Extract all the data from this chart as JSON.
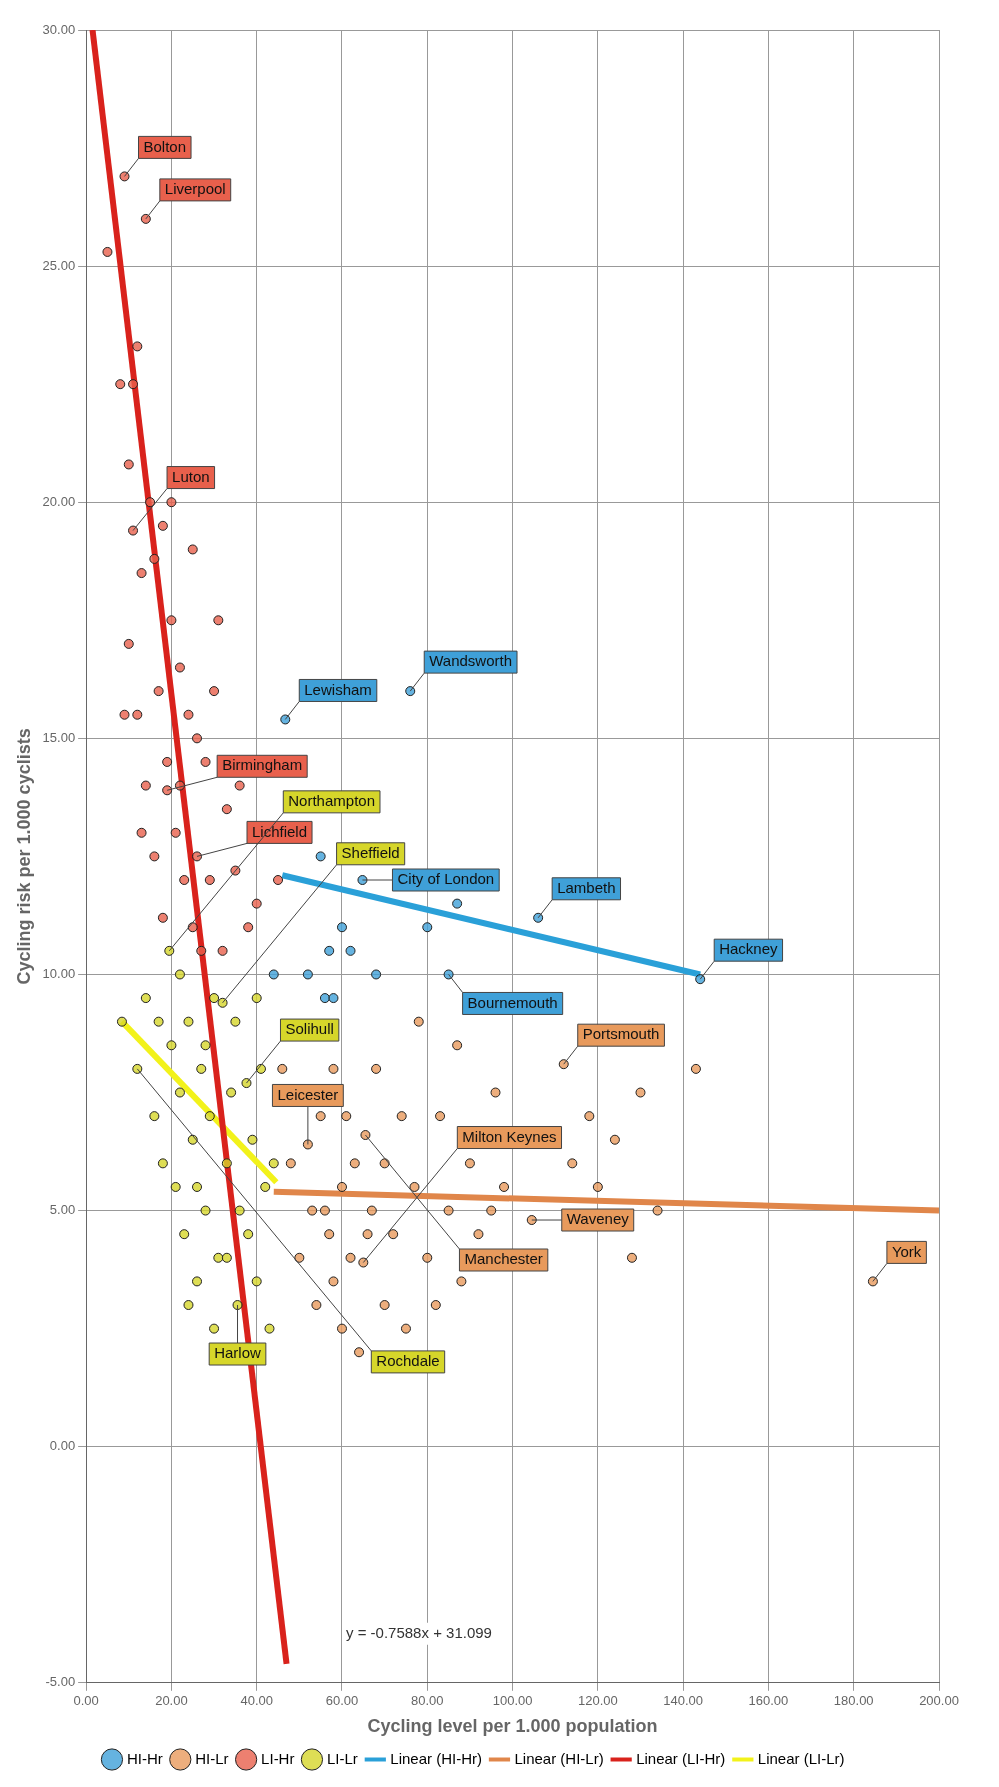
{
  "chart_data": {
    "type": "scatter",
    "xlabel": "Cycling level per 1.000 population",
    "ylabel": "Cycling risk per 1.000 cyclists",
    "xlim": [
      0,
      200
    ],
    "xticks": [
      {
        "value": 0,
        "label": "0.00"
      },
      {
        "value": 20,
        "label": "20.00"
      },
      {
        "value": 40,
        "label": "40.00"
      },
      {
        "value": 60,
        "label": "60.00"
      },
      {
        "value": 80,
        "label": "80.00"
      },
      {
        "value": 100,
        "label": "100.00"
      },
      {
        "value": 120,
        "label": "120.00"
      },
      {
        "value": 140,
        "label": "140.00"
      },
      {
        "value": 160,
        "label": "160.00"
      },
      {
        "value": 180,
        "label": "180.00"
      },
      {
        "value": 200,
        "label": "200.00"
      }
    ],
    "ylim": [
      -5,
      30
    ],
    "yticks": [
      {
        "value": -5,
        "label": "-5.00"
      },
      {
        "value": 0,
        "label": "0.00"
      },
      {
        "value": 5,
        "label": "5.00"
      },
      {
        "value": 10,
        "label": "10.00"
      },
      {
        "value": 15,
        "label": "15.00"
      },
      {
        "value": 20,
        "label": "20.00"
      },
      {
        "value": 25,
        "label": "25.00"
      },
      {
        "value": 30,
        "label": "30.00"
      }
    ],
    "grid": true,
    "legend": "bottom",
    "marker": "circle",
    "series": [
      {
        "name": "HI-Hr",
        "color": "#3fa0d8",
        "x": [
          44,
          46.7,
          52,
          55,
          56,
          57,
          58,
          60,
          62,
          64.8,
          68,
          76,
          80,
          85,
          87,
          106,
          144
        ],
        "values": [
          10,
          15.4,
          10,
          12.5,
          9.5,
          10.5,
          9.5,
          11,
          10.5,
          12,
          10,
          16,
          11,
          10,
          11.5,
          11.2,
          9.9
        ]
      },
      {
        "name": "HI-Lr",
        "color": "#e89a5c",
        "x": [
          46,
          48,
          50,
          52,
          54,
          55,
          56,
          58,
          58,
          60,
          60,
          62,
          63,
          65,
          65.5,
          67,
          68,
          70,
          70,
          72,
          74,
          75,
          77,
          78,
          80,
          82,
          83,
          85,
          87,
          88,
          90,
          92,
          95,
          96,
          98,
          104.5,
          112,
          114,
          118,
          120,
          124,
          128,
          130,
          134,
          143,
          184.5,
          53,
          57,
          61,
          64,
          66
        ],
        "values": [
          8,
          6,
          4,
          6.4,
          3,
          7,
          5,
          3.5,
          8,
          5.5,
          2.5,
          4,
          6,
          3.9,
          6.6,
          5,
          8,
          3,
          6,
          4.5,
          7,
          2.5,
          5.5,
          9,
          4,
          3,
          7,
          5,
          8.5,
          3.5,
          6,
          4.5,
          5,
          7.5,
          5.5,
          4.8,
          8.1,
          6,
          7,
          5.5,
          6.5,
          4,
          7.5,
          5,
          8,
          3.5,
          5,
          4.5,
          7,
          2,
          4.5
        ]
      },
      {
        "name": "LI-Hr",
        "color": "#e8604c",
        "x": [
          5,
          9,
          14,
          8,
          11,
          12,
          10,
          11,
          13,
          15,
          16,
          18,
          20,
          22,
          24,
          26,
          28,
          30,
          31,
          33,
          35,
          36,
          38,
          40,
          17,
          19,
          21,
          23,
          25,
          27,
          29,
          14,
          12,
          10,
          9,
          16,
          18,
          19,
          26,
          22,
          32,
          13,
          20,
          25,
          45
        ],
        "values": [
          25.3,
          26.9,
          26,
          22.5,
          22.5,
          23.3,
          20.8,
          19.4,
          18.5,
          20,
          18.8,
          19.5,
          17.5,
          16.5,
          15.5,
          15,
          14.5,
          16,
          17.5,
          13.5,
          12.2,
          14,
          11,
          11.5,
          16,
          14.5,
          13,
          12,
          11,
          10.5,
          12,
          14,
          15.5,
          17,
          15.5,
          12.5,
          11.2,
          13.9,
          12.5,
          14,
          10.5,
          13,
          20,
          19,
          12
        ]
      },
      {
        "name": "LI-Lr",
        "color": "#d6d62a",
        "x": [
          8.4,
          12,
          14,
          16,
          18,
          19.5,
          20,
          21,
          22,
          23,
          24,
          25,
          26,
          27,
          28,
          29,
          30,
          31,
          32,
          33,
          34,
          35.5,
          36,
          37.6,
          38,
          39,
          40,
          41,
          42,
          43,
          44,
          30,
          24,
          17,
          22,
          35,
          28,
          40,
          33,
          26
        ],
        "values": [
          9,
          8,
          9.5,
          7,
          6,
          10.5,
          8.5,
          5.5,
          7.5,
          4.5,
          9,
          6.5,
          3.5,
          8,
          5,
          7,
          9.5,
          4,
          9.4,
          6,
          7.5,
          3,
          5,
          7.7,
          4.5,
          6.5,
          3.5,
          8,
          5.5,
          2.5,
          6,
          2.5,
          3,
          9,
          10,
          9,
          8.5,
          9.5,
          4,
          5.5
        ]
      },
      {
        "name": "Linear (HI-Hr)",
        "type": "line",
        "marker": "none",
        "color": "#2aa0d8",
        "x": [
          46,
          144
        ],
        "values": [
          12.1,
          10
        ]
      },
      {
        "name": "Linear (HI-Lr)",
        "type": "line",
        "marker": "none",
        "color": "#e0864a",
        "x": [
          44,
          200
        ],
        "values": [
          5.4,
          5
        ]
      },
      {
        "name": "Linear (LI-Hr)",
        "type": "line",
        "marker": "none",
        "color": "#d9221c",
        "x": [
          1.5,
          47
        ],
        "values": [
          30,
          -4.6
        ]
      },
      {
        "name": "Linear (LI-Lr)",
        "type": "line",
        "marker": "none",
        "color": "#f2f21a",
        "x": [
          8.4,
          44.6
        ],
        "values": [
          9,
          5.6
        ]
      }
    ],
    "annotations": [
      "y = -0.7588x + 31.099",
      {
        "text": "Bolton",
        "x": 9,
        "y": 26.9
      },
      {
        "text": "Liverpool",
        "x": 14,
        "y": 26
      },
      {
        "text": "Luton",
        "x": 11,
        "y": 19.4
      },
      {
        "text": "Birmingham",
        "x": 19,
        "y": 13.9
      },
      {
        "text": "Lichfield",
        "x": 26,
        "y": 12.5
      },
      {
        "text": "Northampton",
        "x": 19.5,
        "y": 10.5
      },
      {
        "text": "Sheffield",
        "x": 32,
        "y": 9.4
      },
      {
        "text": "Solihull",
        "x": 37.6,
        "y": 7.7
      },
      {
        "text": "Rochdale",
        "x": 12,
        "y": 8
      },
      {
        "text": "Harlow",
        "x": 35.5,
        "y": 3
      },
      {
        "text": "Lewisham",
        "x": 46.7,
        "y": 15.4
      },
      {
        "text": "Wandsworth",
        "x": 76,
        "y": 16
      },
      {
        "text": "City of London",
        "x": 64.8,
        "y": 12
      },
      {
        "text": "Bournemouth",
        "x": 85,
        "y": 10
      },
      {
        "text": "Lambeth",
        "x": 106,
        "y": 11.2
      },
      {
        "text": "Hackney",
        "x": 144,
        "y": 9.9
      },
      {
        "text": "Leicester",
        "x": 52,
        "y": 6.4
      },
      {
        "text": "Manchester",
        "x": 65.5,
        "y": 6.6
      },
      {
        "text": "Milton Keynes",
        "x": 65,
        "y": 3.9
      },
      {
        "text": "Portsmouth",
        "x": 112,
        "y": 8.1
      },
      {
        "text": "Waveney",
        "x": 104.5,
        "y": 4.8
      },
      {
        "text": "York",
        "x": 184.5,
        "y": 3.5
      }
    ]
  }
}
